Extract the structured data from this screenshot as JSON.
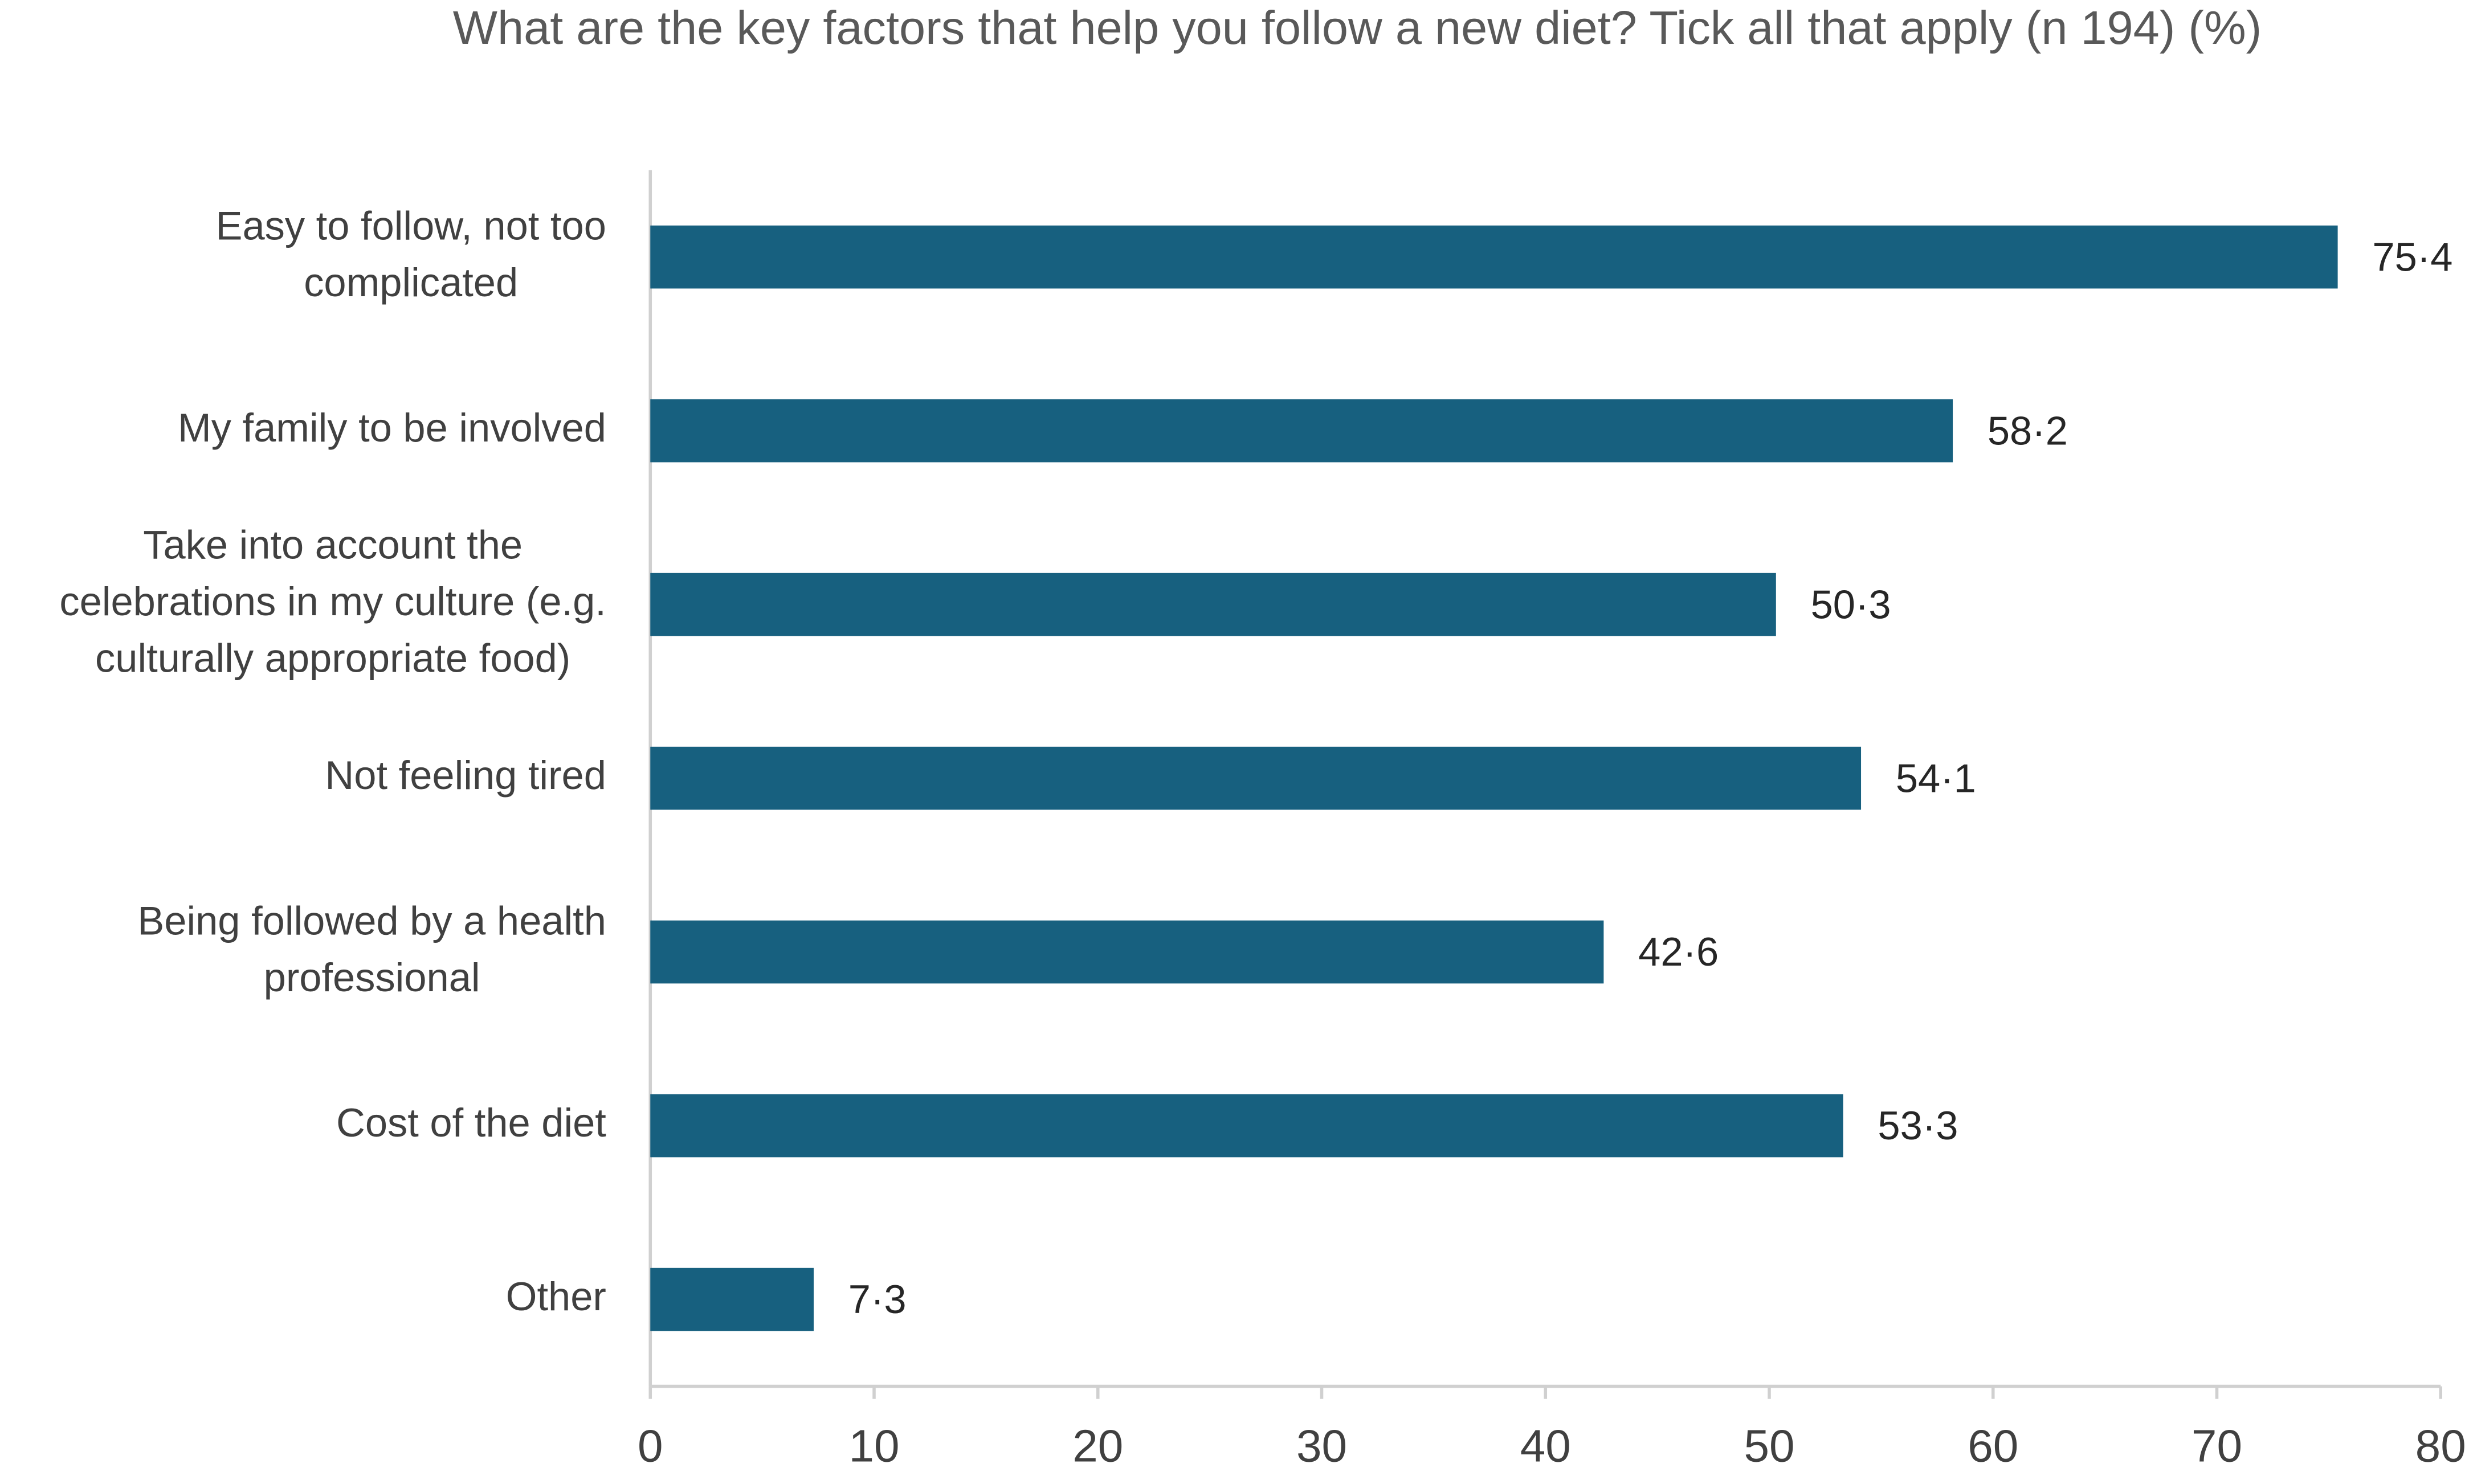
{
  "chart_data": {
    "type": "hbar",
    "title": "What are the key factors that help you follow a new diet? Tick all that apply (n 194) (%)",
    "categories": [
      "Easy to follow, not too complicated",
      "My family to be involved",
      "Take into account the celebrations in my culture (e.g. culturally appropriate food)",
      "Not feeling tired",
      "Being followed by a health professional",
      "Cost of the diet",
      "Other"
    ],
    "values": [
      75.4,
      58.2,
      50.3,
      54.1,
      42.6,
      53.3,
      7.3
    ],
    "value_labels": [
      "75·4",
      "58·2",
      "50·3",
      "54·1",
      "42·6",
      "53·3",
      "7·3"
    ],
    "color": "#17607f",
    "xlim": [
      0,
      80
    ],
    "xticks": [
      0,
      10,
      20,
      30,
      40,
      50,
      60,
      70,
      80
    ],
    "grid": false
  }
}
